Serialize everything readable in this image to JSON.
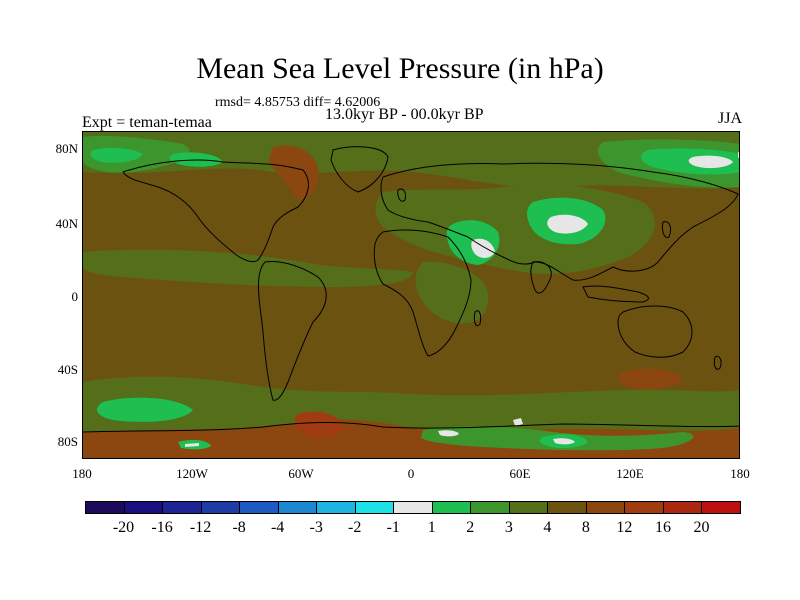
{
  "title": "Mean Sea Level Pressure (in hPa)",
  "stats": "rmsd= 4.85753 diff= 4.62006",
  "period": "13.0kyr BP - 00.0kyr BP",
  "experiment": "Expt = teman-temaa",
  "season": "JJA",
  "lat_labels": [
    "80N",
    "40N",
    "0",
    "40S",
    "80S"
  ],
  "lon_labels": [
    "180",
    "120W",
    "60W",
    "0",
    "60E",
    "120E",
    "180"
  ],
  "colorbar": {
    "colors": [
      "#1e0a5a",
      "#1a0f80",
      "#1e2396",
      "#1e3ca5",
      "#1e5ac3",
      "#1e87d2",
      "#1eb4e1",
      "#1ee1e6",
      "#e6e6e6",
      "#1ebe50",
      "#3c962d",
      "#556e19",
      "#6b5210",
      "#8c4610",
      "#a03c0f",
      "#aa280f",
      "#be0f0f"
    ],
    "labels": [
      "-20",
      "-16",
      "-12",
      "-8",
      "-4",
      "-3",
      "-2",
      "-1",
      "1",
      "2",
      "3",
      "4",
      "8",
      "12",
      "16",
      "20"
    ]
  },
  "colors": {
    "background": "#6b5210",
    "green_light": "#1ebe50",
    "green_mid": "#3c962d",
    "white": "#e6e6e6",
    "red": "#8c4610",
    "red_dark": "#a03c0f",
    "coast": "#000000"
  }
}
